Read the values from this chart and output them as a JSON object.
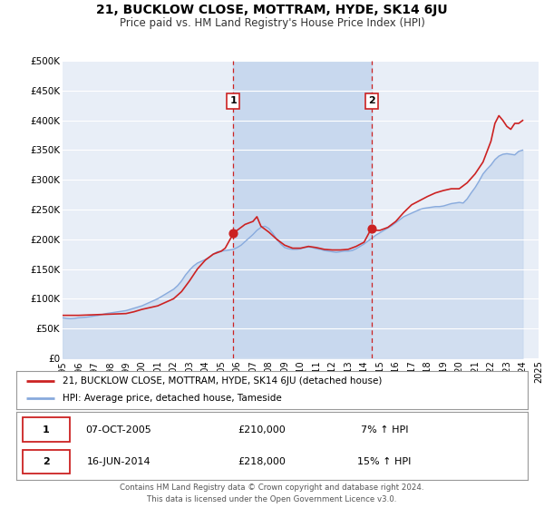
{
  "title": "21, BUCKLOW CLOSE, MOTTRAM, HYDE, SK14 6JU",
  "subtitle": "Price paid vs. HM Land Registry's House Price Index (HPI)",
  "ylim": [
    0,
    500000
  ],
  "xlim_start": 1995,
  "xlim_end": 2025,
  "yticks": [
    0,
    50000,
    100000,
    150000,
    200000,
    250000,
    300000,
    350000,
    400000,
    450000,
    500000
  ],
  "ytick_labels": [
    "£0",
    "£50K",
    "£100K",
    "£150K",
    "£200K",
    "£250K",
    "£300K",
    "£350K",
    "£400K",
    "£450K",
    "£500K"
  ],
  "background_color": "#ffffff",
  "plot_bg_color": "#e8eef7",
  "grid_color": "#ffffff",
  "highlight_region_color": "#c8d8ee",
  "marker1_date_x": 2005.77,
  "marker1_y": 210000,
  "marker1_label": "1",
  "marker1_date_str": "07-OCT-2005",
  "marker1_price": "£210,000",
  "marker1_hpi": "7% ↑ HPI",
  "marker2_date_x": 2014.46,
  "marker2_y": 218000,
  "marker2_label": "2",
  "marker2_date_str": "16-JUN-2014",
  "marker2_price": "£218,000",
  "marker2_hpi": "15% ↑ HPI",
  "line1_color": "#cc2222",
  "line2_color": "#88aadd",
  "line1_label": "21, BUCKLOW CLOSE, MOTTRAM, HYDE, SK14 6JU (detached house)",
  "line2_label": "HPI: Average price, detached house, Tameside",
  "footer_line1": "Contains HM Land Registry data © Crown copyright and database right 2024.",
  "footer_line2": "This data is licensed under the Open Government Licence v3.0.",
  "hpi_data": [
    [
      1995.0,
      68000
    ],
    [
      1995.25,
      67000
    ],
    [
      1995.5,
      66500
    ],
    [
      1995.75,
      67000
    ],
    [
      1996.0,
      68000
    ],
    [
      1996.25,
      68500
    ],
    [
      1996.5,
      69000
    ],
    [
      1996.75,
      70000
    ],
    [
      1997.0,
      71000
    ],
    [
      1997.25,
      72000
    ],
    [
      1997.5,
      73500
    ],
    [
      1997.75,
      75000
    ],
    [
      1998.0,
      76000
    ],
    [
      1998.25,
      77000
    ],
    [
      1998.5,
      78000
    ],
    [
      1998.75,
      79000
    ],
    [
      1999.0,
      80000
    ],
    [
      1999.25,
      82000
    ],
    [
      1999.5,
      84000
    ],
    [
      1999.75,
      86000
    ],
    [
      2000.0,
      88000
    ],
    [
      2000.25,
      91000
    ],
    [
      2000.5,
      94000
    ],
    [
      2000.75,
      97000
    ],
    [
      2001.0,
      100000
    ],
    [
      2001.25,
      104000
    ],
    [
      2001.5,
      108000
    ],
    [
      2001.75,
      112000
    ],
    [
      2002.0,
      116000
    ],
    [
      2002.25,
      122000
    ],
    [
      2002.5,
      130000
    ],
    [
      2002.75,
      140000
    ],
    [
      2003.0,
      148000
    ],
    [
      2003.25,
      155000
    ],
    [
      2003.5,
      160000
    ],
    [
      2003.75,
      163000
    ],
    [
      2004.0,
      166000
    ],
    [
      2004.25,
      170000
    ],
    [
      2004.5,
      175000
    ],
    [
      2004.75,
      179000
    ],
    [
      2005.0,
      180000
    ],
    [
      2005.25,
      181000
    ],
    [
      2005.5,
      182000
    ],
    [
      2005.75,
      183000
    ],
    [
      2006.0,
      186000
    ],
    [
      2006.25,
      190000
    ],
    [
      2006.5,
      196000
    ],
    [
      2006.75,
      202000
    ],
    [
      2007.0,
      208000
    ],
    [
      2007.25,
      215000
    ],
    [
      2007.5,
      220000
    ],
    [
      2007.75,
      222000
    ],
    [
      2008.0,
      218000
    ],
    [
      2008.25,
      210000
    ],
    [
      2008.5,
      200000
    ],
    [
      2008.75,
      192000
    ],
    [
      2009.0,
      186000
    ],
    [
      2009.25,
      184000
    ],
    [
      2009.5,
      183000
    ],
    [
      2009.75,
      183000
    ],
    [
      2010.0,
      184000
    ],
    [
      2010.25,
      186000
    ],
    [
      2010.5,
      187000
    ],
    [
      2010.75,
      186000
    ],
    [
      2011.0,
      184000
    ],
    [
      2011.25,
      183000
    ],
    [
      2011.5,
      181000
    ],
    [
      2011.75,
      180000
    ],
    [
      2012.0,
      179000
    ],
    [
      2012.25,
      178000
    ],
    [
      2012.5,
      179000
    ],
    [
      2012.75,
      180000
    ],
    [
      2013.0,
      180000
    ],
    [
      2013.25,
      181000
    ],
    [
      2013.5,
      184000
    ],
    [
      2013.75,
      188000
    ],
    [
      2014.0,
      192000
    ],
    [
      2014.25,
      197000
    ],
    [
      2014.5,
      202000
    ],
    [
      2014.75,
      207000
    ],
    [
      2015.0,
      211000
    ],
    [
      2015.25,
      215000
    ],
    [
      2015.5,
      219000
    ],
    [
      2015.75,
      223000
    ],
    [
      2016.0,
      228000
    ],
    [
      2016.25,
      233000
    ],
    [
      2016.5,
      238000
    ],
    [
      2016.75,
      241000
    ],
    [
      2017.0,
      244000
    ],
    [
      2017.25,
      247000
    ],
    [
      2017.5,
      250000
    ],
    [
      2017.75,
      252000
    ],
    [
      2018.0,
      253000
    ],
    [
      2018.25,
      254000
    ],
    [
      2018.5,
      255000
    ],
    [
      2018.75,
      255000
    ],
    [
      2019.0,
      256000
    ],
    [
      2019.25,
      258000
    ],
    [
      2019.5,
      260000
    ],
    [
      2019.75,
      261000
    ],
    [
      2020.0,
      262000
    ],
    [
      2020.25,
      261000
    ],
    [
      2020.5,
      268000
    ],
    [
      2020.75,
      278000
    ],
    [
      2021.0,
      287000
    ],
    [
      2021.25,
      298000
    ],
    [
      2021.5,
      310000
    ],
    [
      2021.75,
      318000
    ],
    [
      2022.0,
      325000
    ],
    [
      2022.25,
      334000
    ],
    [
      2022.5,
      340000
    ],
    [
      2022.75,
      343000
    ],
    [
      2023.0,
      344000
    ],
    [
      2023.25,
      343000
    ],
    [
      2023.5,
      342000
    ],
    [
      2023.75,
      348000
    ],
    [
      2024.0,
      350000
    ]
  ],
  "price_data": [
    [
      1995.0,
      72000
    ],
    [
      1995.5,
      72000
    ],
    [
      1996.0,
      72000
    ],
    [
      1997.0,
      73000
    ],
    [
      1998.0,
      74000
    ],
    [
      1999.0,
      75000
    ],
    [
      1999.5,
      78000
    ],
    [
      2000.0,
      82000
    ],
    [
      2001.0,
      88000
    ],
    [
      2002.0,
      100000
    ],
    [
      2002.5,
      112000
    ],
    [
      2003.0,
      130000
    ],
    [
      2003.5,
      150000
    ],
    [
      2004.0,
      165000
    ],
    [
      2004.5,
      175000
    ],
    [
      2005.0,
      180000
    ],
    [
      2005.25,
      185000
    ],
    [
      2005.77,
      210000
    ],
    [
      2006.0,
      215000
    ],
    [
      2006.5,
      225000
    ],
    [
      2007.0,
      230000
    ],
    [
      2007.25,
      238000
    ],
    [
      2007.5,
      222000
    ],
    [
      2008.0,
      212000
    ],
    [
      2008.5,
      200000
    ],
    [
      2009.0,
      190000
    ],
    [
      2009.5,
      185000
    ],
    [
      2010.0,
      185000
    ],
    [
      2010.5,
      188000
    ],
    [
      2011.0,
      186000
    ],
    [
      2011.5,
      183000
    ],
    [
      2012.0,
      182000
    ],
    [
      2012.5,
      182000
    ],
    [
      2013.0,
      183000
    ],
    [
      2013.5,
      188000
    ],
    [
      2014.0,
      195000
    ],
    [
      2014.46,
      218000
    ],
    [
      2014.75,
      215000
    ],
    [
      2015.0,
      215000
    ],
    [
      2015.5,
      220000
    ],
    [
      2016.0,
      230000
    ],
    [
      2016.5,
      245000
    ],
    [
      2017.0,
      258000
    ],
    [
      2017.5,
      265000
    ],
    [
      2018.0,
      272000
    ],
    [
      2018.5,
      278000
    ],
    [
      2019.0,
      282000
    ],
    [
      2019.5,
      285000
    ],
    [
      2020.0,
      285000
    ],
    [
      2020.5,
      295000
    ],
    [
      2021.0,
      310000
    ],
    [
      2021.5,
      330000
    ],
    [
      2022.0,
      365000
    ],
    [
      2022.25,
      395000
    ],
    [
      2022.5,
      408000
    ],
    [
      2022.75,
      400000
    ],
    [
      2023.0,
      390000
    ],
    [
      2023.25,
      385000
    ],
    [
      2023.5,
      395000
    ],
    [
      2023.75,
      395000
    ],
    [
      2024.0,
      400000
    ]
  ]
}
